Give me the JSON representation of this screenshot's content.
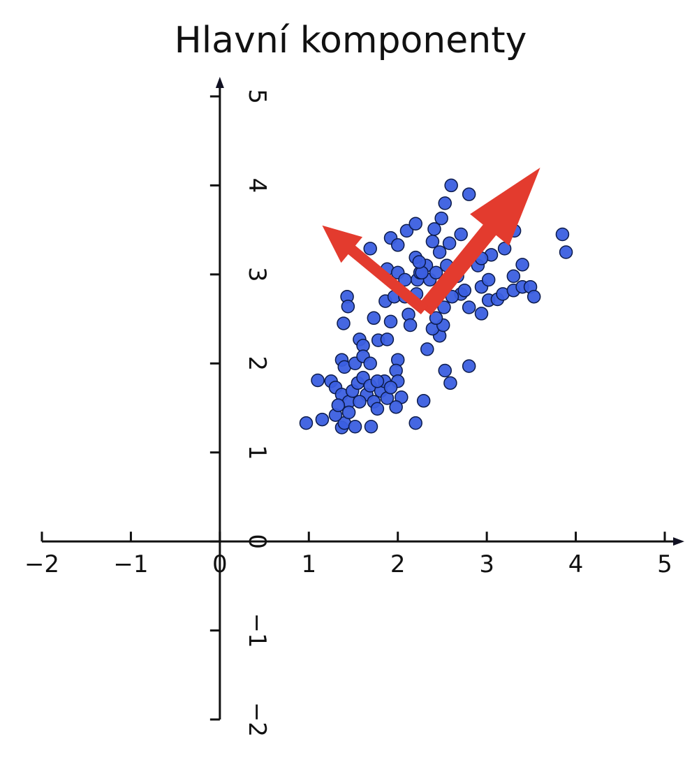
{
  "chart_data": {
    "type": "scatter",
    "title": "Hlavní komponenty",
    "series": [
      {
        "color": "#3b5fe0",
        "x": [
          0.97,
          1.15,
          1.1,
          1.25,
          1.37,
          1.4,
          1.52,
          1.7,
          1.3,
          1.43,
          1.44,
          1.39,
          1.37,
          1.4,
          1.52,
          1.57,
          1.61,
          1.78,
          1.88,
          1.73,
          1.86,
          1.69,
          1.92,
          2.0,
          2.1,
          2.2,
          1.88,
          2.0,
          1.96,
          2.12,
          2.14,
          2.0,
          1.98,
          2.0,
          2.04,
          1.98,
          2.29,
          2.2,
          2.33,
          2.47,
          2.39,
          2.51,
          2.43,
          2.52,
          2.53,
          2.59,
          2.8,
          2.6,
          2.8,
          2.53,
          2.49,
          2.41,
          2.58,
          2.47,
          2.32,
          2.2,
          2.22,
          2.21,
          2.55,
          2.67,
          2.71,
          2.8,
          2.94,
          3.02,
          2.94,
          2.9,
          3.02,
          3.12,
          3.18,
          3.3,
          3.4,
          3.49,
          3.53,
          3.4,
          3.3,
          3.31,
          3.2,
          3.05,
          2.94,
          3.85,
          3.89,
          2.71,
          2.75,
          2.61,
          1.3,
          1.37,
          1.45,
          1.49,
          1.55,
          1.61,
          1.65,
          1.69,
          1.73,
          1.77,
          1.81,
          1.85,
          1.88,
          1.92,
          1.77,
          1.57,
          1.45,
          1.33,
          1.61,
          1.69,
          2.25,
          2.36,
          2.43,
          2.08,
          1.92,
          2.27,
          2.39,
          2.24,
          2.08
        ],
        "values": [
          1.33,
          1.37,
          1.81,
          1.8,
          1.28,
          1.33,
          1.29,
          1.29,
          1.42,
          2.75,
          2.64,
          2.45,
          2.04,
          1.96,
          2.0,
          2.27,
          2.2,
          2.26,
          2.27,
          2.51,
          2.7,
          3.29,
          3.41,
          3.33,
          3.49,
          3.57,
          3.06,
          3.02,
          2.75,
          2.55,
          2.43,
          2.04,
          1.92,
          1.8,
          1.62,
          1.51,
          1.58,
          1.33,
          2.16,
          2.31,
          2.39,
          2.43,
          2.51,
          2.63,
          1.92,
          1.78,
          1.97,
          4.0,
          3.9,
          3.8,
          3.63,
          3.51,
          3.35,
          3.25,
          3.1,
          3.19,
          2.94,
          2.78,
          3.1,
          2.98,
          2.78,
          2.63,
          2.56,
          2.71,
          2.86,
          3.1,
          2.94,
          2.72,
          2.78,
          2.82,
          2.86,
          2.86,
          2.75,
          3.11,
          2.98,
          3.49,
          3.29,
          3.22,
          3.18,
          3.45,
          3.25,
          3.45,
          2.82,
          2.75,
          1.73,
          1.65,
          1.57,
          1.69,
          1.78,
          1.84,
          1.65,
          1.75,
          1.57,
          1.49,
          1.69,
          1.8,
          1.61,
          1.73,
          1.8,
          1.57,
          1.45,
          1.53,
          2.08,
          2.0,
          3.02,
          2.94,
          3.02,
          2.75,
          2.47,
          3.02,
          3.37,
          3.14,
          2.94
        ]
      }
    ],
    "arrows": [
      {
        "color": "#e33b2e",
        "start": [
          2.3,
          2.6
        ],
        "end": [
          3.6,
          4.2
        ]
      },
      {
        "color": "#e33b2e",
        "start": [
          2.3,
          2.6
        ],
        "end": [
          1.15,
          3.55
        ]
      }
    ],
    "xlim": [
      -2,
      5
    ],
    "ylim": [
      -2,
      5
    ],
    "xticks": [
      {
        "value": -2,
        "label": "−2"
      },
      {
        "value": -1,
        "label": "−1"
      },
      0,
      1,
      2,
      3,
      4,
      5
    ],
    "yticks": [
      {
        "value": -2,
        "label": "−2"
      },
      {
        "value": -1,
        "label": "−1"
      },
      0,
      1,
      2,
      3,
      4,
      5
    ]
  }
}
